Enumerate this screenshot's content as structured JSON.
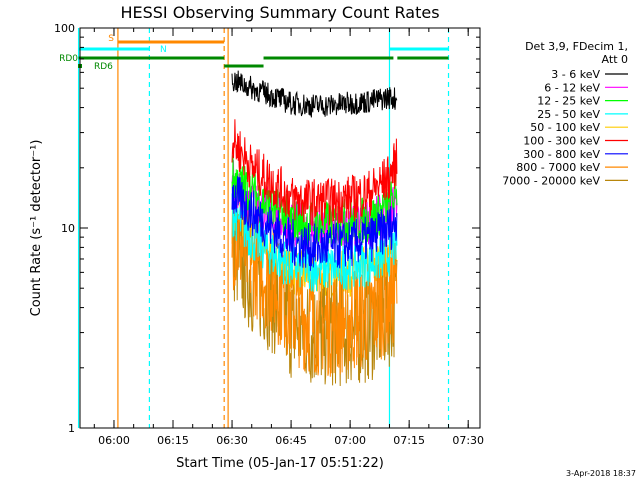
{
  "chart_data": {
    "type": "line",
    "title": "HESSI Observing Summary Count Rates",
    "xlabel": "Start Time (05-Jan-17 05:51:22)",
    "ylabel": "Count Rate (s⁻¹ detector⁻¹)",
    "y_scale": "log",
    "ylim": [
      1,
      100
    ],
    "y_tick_labels": [
      "1",
      "10",
      "100"
    ],
    "x_axis_start": "05:51:22",
    "x_axis_end": "07:33:00",
    "x_tick_labels": [
      "06:00",
      "06:15",
      "06:30",
      "06:45",
      "07:00",
      "07:15",
      "07:30"
    ],
    "legend_header": [
      "Det 3,9, FDecim 1,",
      "Att 0"
    ],
    "legend_placement": "right",
    "footer_date": "3-Apr-2018 18:37",
    "series": [
      {
        "name": "3 - 6 keV",
        "color": "#000000",
        "x": [
          "06:30",
          "06:35",
          "06:40",
          "06:45",
          "06:50",
          "06:55",
          "07:00",
          "07:05",
          "07:10",
          "07:12"
        ],
        "values": [
          55,
          50,
          46,
          42,
          41,
          41,
          42,
          43,
          45,
          44
        ]
      },
      {
        "name": "6 - 12 keV",
        "color": "#ff00ff",
        "x": [
          "06:30",
          "06:35",
          "06:40",
          "06:45",
          "06:50",
          "06:55",
          "07:00",
          "07:05",
          "07:10",
          "07:12"
        ],
        "values": [
          17,
          14,
          12,
          10.5,
          10,
          10,
          10.2,
          10.5,
          12,
          14
        ]
      },
      {
        "name": "12 - 25 keV",
        "color": "#00ff00",
        "x": [
          "06:30",
          "06:35",
          "06:40",
          "06:45",
          "06:50",
          "06:55",
          "07:00",
          "07:05",
          "07:10",
          "07:12"
        ],
        "values": [
          18,
          15,
          12.5,
          11,
          10.5,
          10.5,
          10.8,
          11,
          13,
          15
        ]
      },
      {
        "name": "25 - 50 keV",
        "color": "#00ffff",
        "x": [
          "06:30",
          "06:35",
          "06:40",
          "06:45",
          "06:50",
          "06:55",
          "07:00",
          "07:05",
          "07:10",
          "07:12"
        ],
        "values": [
          12,
          9,
          7.5,
          6.5,
          6.3,
          6.3,
          6.5,
          6.7,
          7.5,
          8.5
        ]
      },
      {
        "name": "50 - 100 keV",
        "color": "#ffcc00",
        "x": [
          "06:30",
          "06:35",
          "06:40",
          "06:45",
          "06:50",
          "06:55",
          "07:00",
          "07:05",
          "07:10",
          "07:12"
        ],
        "values": [
          11,
          8.5,
          7,
          6,
          5.8,
          5.8,
          6,
          6.2,
          7,
          8
        ]
      },
      {
        "name": "100 - 300 keV",
        "color": "#ff0000",
        "x": [
          "06:30",
          "06:35",
          "06:40",
          "06:45",
          "06:50",
          "06:55",
          "07:00",
          "07:05",
          "07:10",
          "07:12"
        ],
        "values": [
          28,
          20,
          17,
          14,
          13.5,
          13.5,
          14,
          15,
          18,
          22
        ]
      },
      {
        "name": "300 - 800 keV",
        "color": "#0000ff",
        "x": [
          "06:30",
          "06:35",
          "06:40",
          "06:45",
          "06:50",
          "06:55",
          "07:00",
          "07:05",
          "07:10",
          "07:12"
        ],
        "values": [
          15,
          12,
          10,
          8.5,
          8,
          8,
          8.3,
          8.8,
          10,
          11
        ]
      },
      {
        "name": "800 - 7000 keV",
        "color": "#ff8800",
        "x": [
          "06:30",
          "06:35",
          "06:40",
          "06:45",
          "06:50",
          "06:55",
          "07:00",
          "07:05",
          "07:10",
          "07:12"
        ],
        "values": [
          9.5,
          7,
          5.5,
          4,
          3.5,
          3.4,
          3.5,
          3.8,
          4.5,
          5.2
        ]
      },
      {
        "name": "7000 - 20000 keV",
        "color": "#b8860b",
        "x": [
          "06:30",
          "06:35",
          "06:40",
          "06:45",
          "06:50",
          "06:55",
          "07:00",
          "07:05",
          "07:10",
          "07:12"
        ],
        "values": [
          8,
          5.5,
          4.5,
          3.3,
          3,
          3,
          3,
          3.2,
          3.8,
          4.5
        ]
      }
    ],
    "flag_bars": [
      {
        "label": "S",
        "color": "#ff8800",
        "segments": [
          [
            "06:01",
            "06:28"
          ]
        ]
      },
      {
        "label": "N",
        "color": "#00ffff",
        "segments": [
          [
            "05:51",
            "06:09"
          ],
          [
            "07:10",
            "07:25"
          ]
        ]
      },
      {
        "label": "RD0",
        "color": "#008800",
        "segments": [
          [
            "05:51",
            "06:28"
          ],
          [
            "06:38",
            "07:11"
          ],
          [
            "07:12",
            "07:25"
          ]
        ]
      },
      {
        "label": "RD6",
        "color": "#008800",
        "segments": [
          [
            "06:28",
            "06:38"
          ]
        ]
      }
    ],
    "vertical_markers": [
      {
        "color": "#00ffff",
        "style": "solid",
        "x": "05:51"
      },
      {
        "color": "#ff8800",
        "style": "solid",
        "x": "06:01"
      },
      {
        "color": "#00ffff",
        "style": "dashed",
        "x": "06:09"
      },
      {
        "color": "#ff8800",
        "style": "dashed",
        "x": "06:28"
      },
      {
        "color": "#ff8800",
        "style": "solid",
        "x": "06:29"
      },
      {
        "color": "#00ffff",
        "style": "solid",
        "x": "07:10"
      },
      {
        "color": "#00ffff",
        "style": "dashed",
        "x": "07:25"
      }
    ]
  }
}
